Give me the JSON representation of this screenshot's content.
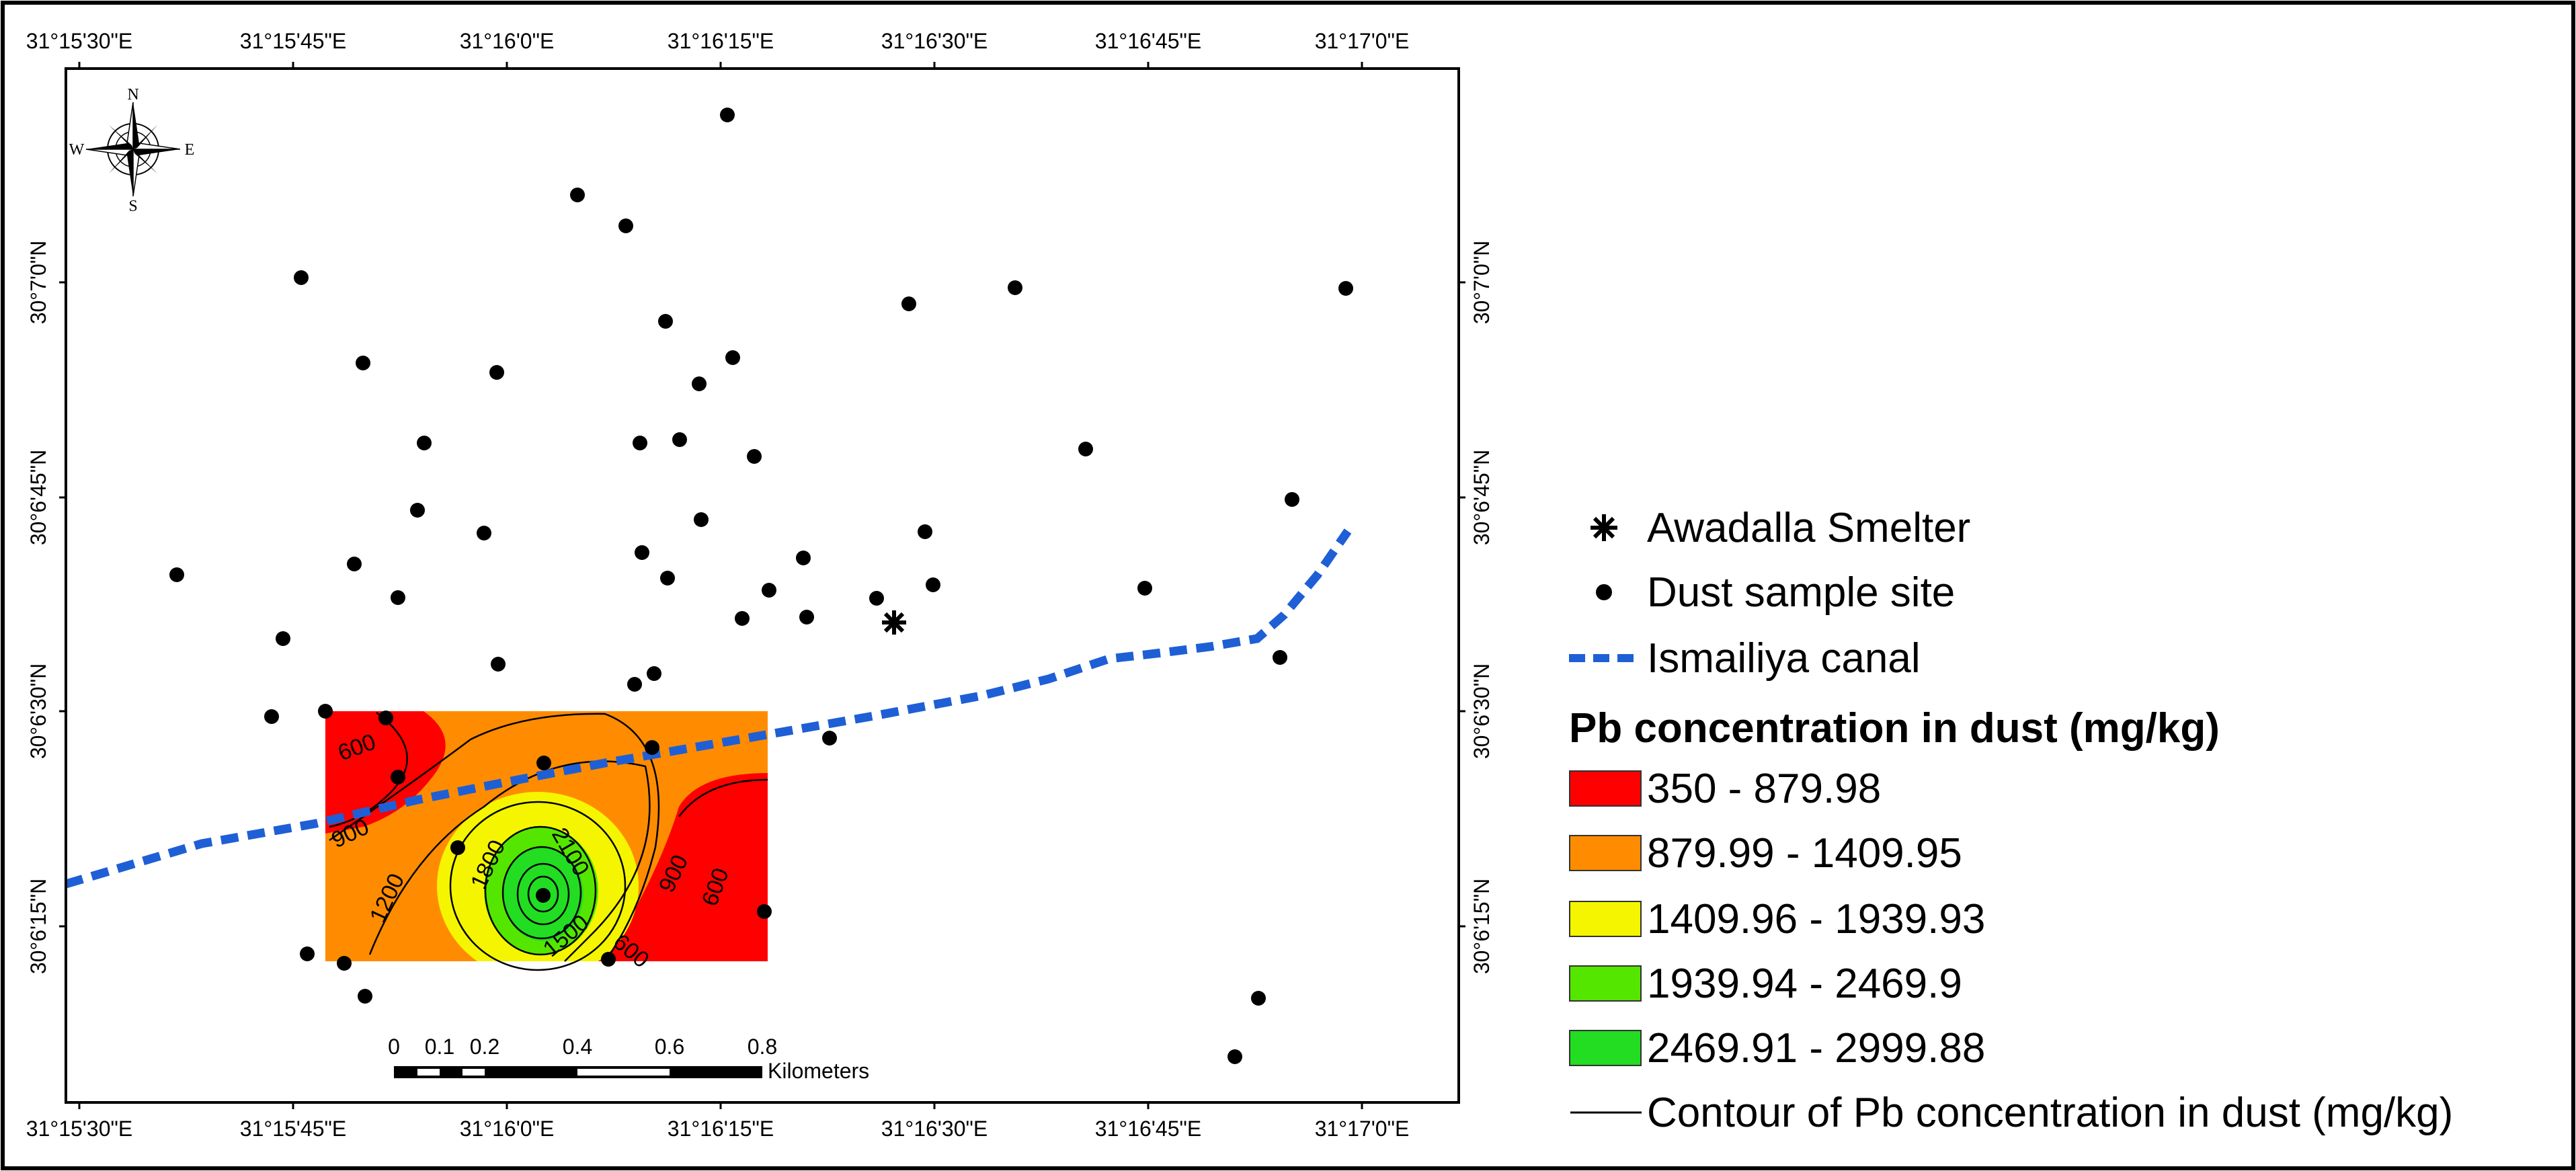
{
  "map": {
    "top_ticks": [
      "31°15'30\"E",
      "31°15'45\"E",
      "31°16'0\"E",
      "31°16'15\"E",
      "31°16'30\"E",
      "31°16'45\"E",
      "31°17'0\"E"
    ],
    "bottom_ticks": [
      "31°15'30\"E",
      "31°15'45\"E",
      "31°16'0\"E",
      "31°16'15\"E",
      "31°16'30\"E",
      "31°16'45\"E",
      "31°17'0\"E"
    ],
    "left_ticks": [
      "30°7'0\"N",
      "30°6'45\"N",
      "30°6'30\"N",
      "30°6'15\"N"
    ],
    "right_ticks": [
      "30°7'0\"N",
      "30°6'45\"N",
      "30°6'30\"N",
      "30°6'15\"N"
    ],
    "compass": {
      "n": "N",
      "s": "S",
      "e": "E",
      "w": "W"
    },
    "contour_labels": [
      "600",
      "900",
      "1200",
      "1800",
      "2100",
      "1500",
      "900",
      "600",
      "600"
    ],
    "scale_bar": {
      "labels": [
        "0",
        "0.1",
        "0.2",
        "0.4",
        "0.6",
        "0.8"
      ],
      "unit": "Kilometers"
    }
  },
  "legend": {
    "smelter": "Awadalla Smelter",
    "sample_site": "Dust sample site",
    "canal": "Ismailiya canal",
    "title": "Pb concentration in dust (mg/kg)",
    "classes": [
      {
        "label": "350 - 879.98",
        "color": "#ff0000"
      },
      {
        "label": "879.99 - 1409.95",
        "color": "#ff8c00"
      },
      {
        "label": "1409.96 - 1939.93",
        "color": "#f5f500"
      },
      {
        "label": "1939.94 - 2469.9",
        "color": "#55e600"
      },
      {
        "label": "2469.91 - 2999.88",
        "color": "#22dd22"
      }
    ],
    "contour": "Contour of Pb concentration in dust (mg/kg)"
  },
  "colors": {
    "canal": "#1f5fd6",
    "frame": "#000000"
  }
}
